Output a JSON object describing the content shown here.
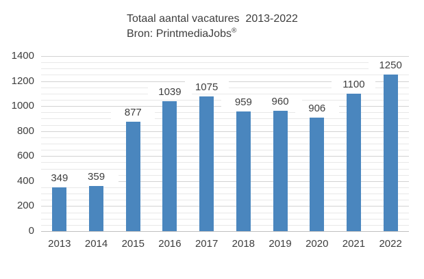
{
  "chart": {
    "subtitle_text": "Bron: PrintmediaJobs",
    "subtitle_mark": "®"
  },
  "chart_data": {
    "type": "bar",
    "title": "Totaal aantal vacatures  2013-2022",
    "subtitle": "Bron: PrintmediaJobs®",
    "categories": [
      "2013",
      "2014",
      "2015",
      "2016",
      "2017",
      "2018",
      "2019",
      "2020",
      "2021",
      "2022"
    ],
    "values": [
      349,
      359,
      877,
      1039,
      1075,
      959,
      960,
      906,
      1100,
      1250
    ],
    "xlabel": "",
    "ylabel": "",
    "ylim": [
      0,
      1400
    ],
    "y_ticks": [
      0,
      200,
      400,
      600,
      800,
      1000,
      1200,
      1400
    ],
    "y_minor_step": 50,
    "y_major_step": 200,
    "grid": true,
    "legend_position": "none",
    "data_labels": true,
    "colors": {
      "bar": "#4a86be",
      "grid_minor": "#e8e8e8",
      "grid_major": "#d2d2d2",
      "axis_line": "#bfbfbf",
      "text": "#3d3d3d"
    }
  }
}
